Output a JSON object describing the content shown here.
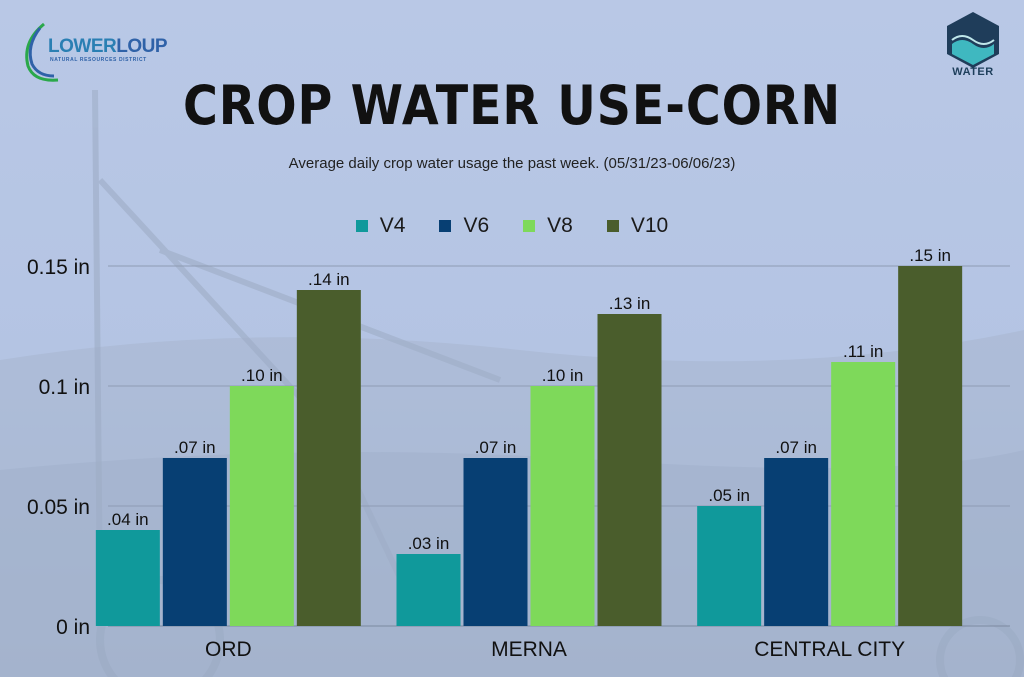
{
  "logos": {
    "left_brand_part1": "LOWER",
    "left_brand_part2": "LOUP",
    "left_subtitle": "NATURAL RESOURCES DISTRICT",
    "right_label": "WATER"
  },
  "colors": {
    "V4": "#10999b",
    "V6": "#073f73",
    "V8": "#7ed95a",
    "V10": "#4a5d2c"
  },
  "chart_data": {
    "type": "bar",
    "title": "CROP WATER USE-CORN",
    "subtitle": "Average daily crop water usage the past week. (05/31/23-06/06/23)",
    "categories": [
      "ORD",
      "MERNA",
      "CENTRAL CITY"
    ],
    "series": [
      {
        "name": "V4",
        "values": [
          0.04,
          0.03,
          0.05
        ],
        "labels": [
          ".04 in",
          ".03 in",
          ".05 in"
        ]
      },
      {
        "name": "V6",
        "values": [
          0.07,
          0.07,
          0.07
        ],
        "labels": [
          ".07 in",
          ".07 in",
          ".07 in"
        ]
      },
      {
        "name": "V8",
        "values": [
          0.1,
          0.1,
          0.11
        ],
        "labels": [
          ".10 in",
          ".10 in",
          ".11 in"
        ]
      },
      {
        "name": "V10",
        "values": [
          0.14,
          0.13,
          0.15
        ],
        "labels": [
          ".14 in",
          ".13 in",
          ".15 in"
        ]
      }
    ],
    "yticks": [
      0,
      0.05,
      0.1,
      0.15
    ],
    "ytick_labels": [
      "0 in",
      "0.05 in",
      "0.1 in",
      "0.15 in"
    ],
    "ylim": [
      0,
      0.15
    ],
    "grid": true,
    "legend_position": "top-center"
  }
}
